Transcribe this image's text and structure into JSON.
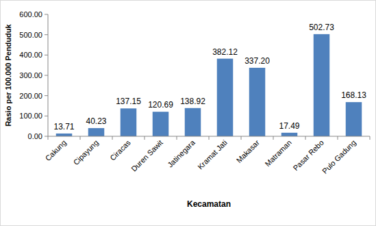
{
  "chart_data": {
    "type": "bar",
    "x_label": "Kecamatan",
    "y_label": "Rasio per 100.000 Penduduk",
    "categories": [
      "Cakung",
      "Cipayung",
      "Ciracas",
      "Duren Sawit",
      "Jatinegara",
      "Kramat Jati",
      "Makasar",
      "Matraman",
      "Pasar Rebo",
      "Pulo Gadung"
    ],
    "values": [
      13.71,
      40.23,
      137.15,
      120.69,
      138.92,
      382.12,
      337.2,
      17.49,
      502.73,
      168.13
    ],
    "value_labels": [
      "13.71",
      "40.23",
      "137.15",
      "120.69",
      "138.92",
      "382.12",
      "337.20",
      "17.49",
      "502.73",
      "168.13"
    ],
    "color": "#4f81bd",
    "ylim": [
      0,
      600
    ],
    "yticks": [
      {
        "value": 0,
        "label": "0.00"
      },
      {
        "value": 100,
        "label": "100.00"
      },
      {
        "value": 200,
        "label": "200.00"
      },
      {
        "value": 300,
        "label": "300.00"
      },
      {
        "value": 400,
        "label": "400.00"
      },
      {
        "value": 500,
        "label": "500.00"
      },
      {
        "value": 600,
        "label": "600.00"
      }
    ],
    "grid": false,
    "data_labels": true
  }
}
